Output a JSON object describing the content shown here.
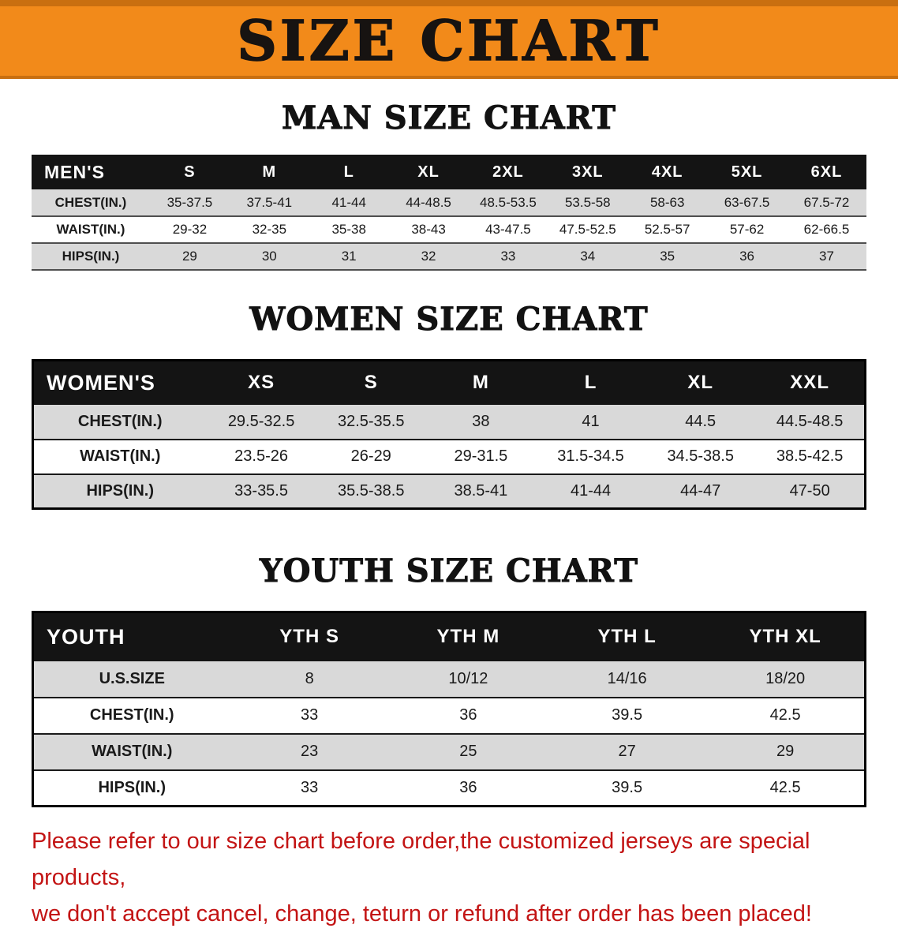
{
  "banner": {
    "title": "SIZE CHART"
  },
  "sections": [
    {
      "heading": "MAN SIZE CHART",
      "table": {
        "header": [
          "MEN'S",
          "S",
          "M",
          "L",
          "XL",
          "2XL",
          "3XL",
          "4XL",
          "5XL",
          "6XL"
        ],
        "rows": [
          {
            "label": "CHEST(IN.)",
            "values": [
              "35-37.5",
              "37.5-41",
              "41-44",
              "44-48.5",
              "48.5-53.5",
              "53.5-58",
              "58-63",
              "63-67.5",
              "67.5-72"
            ]
          },
          {
            "label": "WAIST(IN.)",
            "values": [
              "29-32",
              "32-35",
              "35-38",
              "38-43",
              "43-47.5",
              "47.5-52.5",
              "52.5-57",
              "57-62",
              "62-66.5"
            ]
          },
          {
            "label": "HIPS(IN.)",
            "values": [
              "29",
              "30",
              "31",
              "32",
              "33",
              "34",
              "35",
              "36",
              "37"
            ]
          }
        ]
      }
    },
    {
      "heading": "WOMEN SIZE CHART",
      "table": {
        "header": [
          "WOMEN'S",
          "XS",
          "S",
          "M",
          "L",
          "XL",
          "XXL"
        ],
        "rows": [
          {
            "label": "CHEST(IN.)",
            "values": [
              "29.5-32.5",
              "32.5-35.5",
              "38",
              "41",
              "44.5",
              "44.5-48.5"
            ]
          },
          {
            "label": "WAIST(IN.)",
            "values": [
              "23.5-26",
              "26-29",
              "29-31.5",
              "31.5-34.5",
              "34.5-38.5",
              "38.5-42.5"
            ]
          },
          {
            "label": "HIPS(IN.)",
            "values": [
              "33-35.5",
              "35.5-38.5",
              "38.5-41",
              "41-44",
              "44-47",
              "47-50"
            ]
          }
        ]
      }
    },
    {
      "heading": "YOUTH SIZE CHART",
      "table": {
        "header": [
          "YOUTH",
          "YTH S",
          "YTH M",
          "YTH L",
          "YTH XL"
        ],
        "rows": [
          {
            "label": "U.S.SIZE",
            "values": [
              "8",
              "10/12",
              "14/16",
              "18/20"
            ]
          },
          {
            "label": "CHEST(IN.)",
            "values": [
              "33",
              "36",
              "39.5",
              "42.5"
            ]
          },
          {
            "label": "WAIST(IN.)",
            "values": [
              "23",
              "25",
              "27",
              "29"
            ]
          },
          {
            "label": "HIPS(IN.)",
            "values": [
              "33",
              "36",
              "39.5",
              "42.5"
            ]
          }
        ]
      }
    }
  ],
  "disclaimer": {
    "line1": "Please refer to our size chart before order,the customized jerseys are special products,",
    "line2": "we don't accept cancel, change, teturn or refund after order has been placed!"
  },
  "colors": {
    "banner_bg": "#F28A1A",
    "banner_edge": "#C96F10",
    "table_header_bg": "#141414",
    "stripe_bg": "#D9D9D9",
    "disclaimer_text": "#C31414"
  }
}
